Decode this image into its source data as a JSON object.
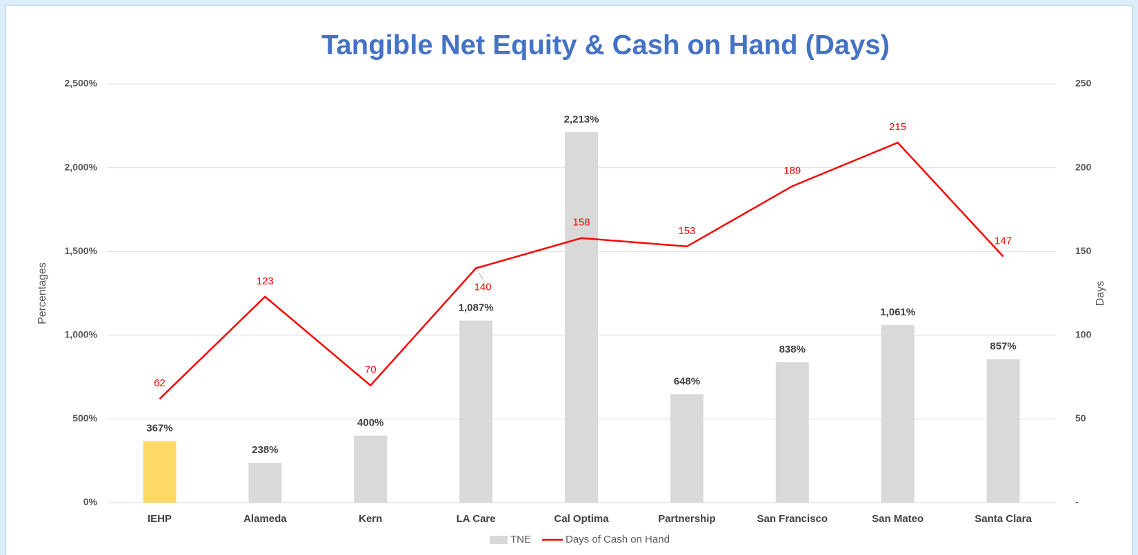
{
  "chart_data": {
    "type": "bar+line",
    "title": "Tangible Net Equity & Cash on Hand (Days)",
    "y_label": "Percentages",
    "y2_label": "Days",
    "categories": [
      "IEHP",
      "Alameda",
      "Kern",
      "LA Care",
      "Cal Optima",
      "Partnership",
      "San Francisco",
      "San Mateo",
      "Santa Clara"
    ],
    "series": [
      {
        "name": "TNE",
        "type": "bar",
        "color": "#D9D9D9",
        "colors": [
          "#FFD966",
          "#D9D9D9",
          "#D9D9D9",
          "#D9D9D9",
          "#D9D9D9",
          "#D9D9D9",
          "#D9D9D9",
          "#D9D9D9",
          "#D9D9D9"
        ],
        "values": [
          367,
          238,
          400,
          1087,
          2213,
          648,
          838,
          1061,
          857
        ],
        "value_labels": [
          "367%",
          "238%",
          "400%",
          "1,087%",
          "2,213%",
          "648%",
          "838%",
          "1,061%",
          "857%"
        ]
      },
      {
        "name": "Days of Cash on Hand",
        "type": "line",
        "axis": "y2",
        "color": "#FF0000",
        "values": [
          62,
          123,
          70,
          140,
          158,
          153,
          189,
          215,
          147
        ]
      }
    ],
    "ylim": [
      0,
      2500
    ],
    "yticks": [
      {
        "value": 0,
        "label": "0%"
      },
      {
        "value": 500,
        "label": "500%"
      },
      {
        "value": 1000,
        "label": "1,000%"
      },
      {
        "value": 1500,
        "label": "1,500%"
      },
      {
        "value": 2000,
        "label": "2,000%"
      },
      {
        "value": 2500,
        "label": "2,500%"
      }
    ],
    "y2lim": [
      0,
      250
    ],
    "y2ticks": [
      {
        "value": 0,
        "label": "-"
      },
      50,
      100,
      150,
      200,
      250
    ],
    "grid": true,
    "legend": "bottom"
  }
}
